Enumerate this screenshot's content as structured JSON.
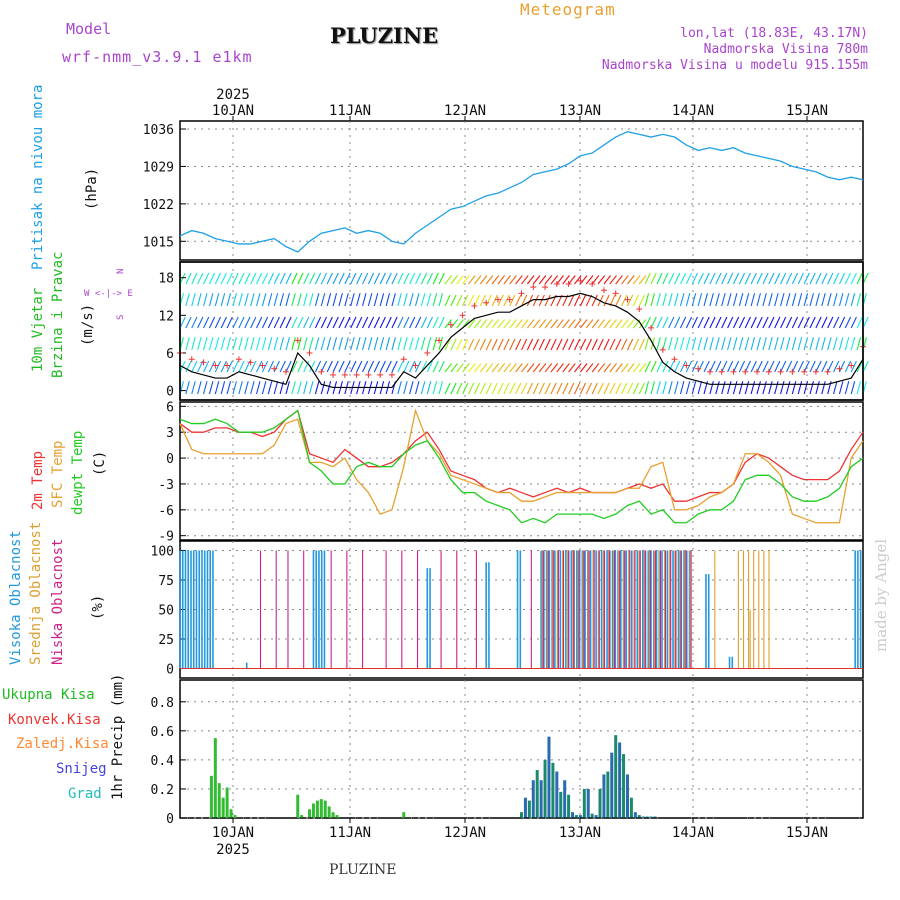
{
  "header": {
    "model_label": "Model",
    "model_name": "wrf-nmm_v3.9.1 e1km",
    "title": "PLUZINE",
    "meteogram": "Meteogram",
    "coords": "lon,lat (18.83E, 43.17N)",
    "elevation": "Nadmorska Visina 780m",
    "model_elevation": "Nadmorska Visina u modelu 915.155m"
  },
  "footer": {
    "station": "PLUZINE",
    "credit": "made by Angel"
  },
  "colors": {
    "pressure": "#1ea0e6",
    "wind": "#22bb22",
    "t2m": "#ee3333",
    "sfc": "#e8a030",
    "dew": "#22cc22",
    "high_cloud": "#2299dd",
    "mid_cloud": "#dda030",
    "low_cloud": "#cc2288",
    "header_purple": "#aa44cc",
    "header_orange": "#e8a030"
  },
  "chart_data": [
    {
      "type": "line",
      "panel": "pressure",
      "label_lines": [
        "Pritisak na nivou mora",
        "(hPa)"
      ],
      "x_top_labels": [
        "10JAN",
        "11JAN",
        "12JAN",
        "13JAN",
        "14JAN",
        "15JAN"
      ],
      "x_top_year": "2025",
      "yticks": [
        1015,
        1022,
        1029,
        1036
      ],
      "ylim": [
        1011.5,
        1037.5
      ],
      "x_hours": [
        0,
        3,
        6,
        9,
        12,
        15,
        18,
        21,
        24,
        27,
        30,
        33,
        36,
        39,
        42,
        45,
        48,
        51,
        54,
        57,
        60,
        63,
        66,
        69,
        72,
        75,
        78,
        81,
        84,
        87,
        90,
        93,
        96,
        99,
        102,
        105,
        108,
        111,
        114,
        117,
        120,
        123,
        126,
        129,
        132,
        135,
        138,
        141,
        144,
        147,
        150,
        153,
        156,
        159,
        162,
        165,
        168,
        171,
        174
      ],
      "values": [
        1016,
        1017,
        1016.5,
        1015.5,
        1015,
        1014.5,
        1014.5,
        1015,
        1015.5,
        1014,
        1013,
        1015,
        1016.5,
        1017,
        1017.5,
        1016.5,
        1017,
        1016.5,
        1015,
        1014.5,
        1016.5,
        1018,
        1019.5,
        1021,
        1021.5,
        1022.5,
        1023.5,
        1024,
        1025,
        1026,
        1027.5,
        1028,
        1028.5,
        1029.5,
        1031,
        1031.5,
        1033,
        1034.5,
        1035.5,
        1035,
        1034.5,
        1035,
        1034.5,
        1033,
        1032,
        1032.5,
        1032,
        1032.5,
        1031.5,
        1031,
        1030.5,
        1030,
        1029,
        1028.5,
        1028,
        1027,
        1026.5,
        1027,
        1026.5
      ]
    },
    {
      "type": "line",
      "panel": "wind",
      "label_lines": [
        "10m Vjetar",
        "Brzina i Pravac",
        "(m/s)"
      ],
      "compass": "W <-|-> E",
      "compass_n": "N",
      "compass_s": "S",
      "yticks": [
        0,
        6,
        12,
        18
      ],
      "ylim": [
        -1.5,
        20.5
      ],
      "x_hours": [
        0,
        3,
        6,
        9,
        12,
        15,
        18,
        21,
        24,
        27,
        30,
        33,
        36,
        39,
        42,
        45,
        48,
        51,
        54,
        57,
        60,
        63,
        66,
        69,
        72,
        75,
        78,
        81,
        84,
        87,
        90,
        93,
        96,
        99,
        102,
        105,
        108,
        111,
        114,
        117,
        120,
        123,
        126,
        129,
        132,
        135,
        138,
        141,
        144,
        147,
        150,
        153,
        156,
        159,
        162,
        165,
        168,
        171,
        174
      ],
      "values": [
        4,
        3,
        2.5,
        2,
        2,
        3,
        2.5,
        2,
        1.5,
        1,
        6,
        4,
        1,
        0.5,
        0.5,
        0.5,
        0.5,
        0.5,
        0.5,
        3,
        2,
        4,
        6,
        8.5,
        10,
        11.5,
        12,
        12.5,
        12.5,
        13.5,
        14.5,
        14.5,
        15,
        15,
        15.5,
        15,
        14,
        13.5,
        12.5,
        11,
        8,
        4.5,
        3,
        2,
        1.5,
        1,
        1,
        1,
        1,
        1,
        1,
        1,
        1,
        1,
        1,
        1,
        1.5,
        2,
        5
      ]
    },
    {
      "type": "line",
      "panel": "temperature",
      "label_lines": [
        "2m Temp",
        "SFC Temp",
        "dewpt Temp",
        "(C)"
      ],
      "yticks": [
        -9,
        -6,
        -3,
        0,
        3,
        6
      ],
      "ylim": [
        -9.5,
        6.5
      ],
      "x_hours": [
        0,
        3,
        6,
        9,
        12,
        15,
        18,
        21,
        24,
        27,
        30,
        33,
        36,
        39,
        42,
        45,
        48,
        51,
        54,
        57,
        60,
        63,
        66,
        69,
        72,
        75,
        78,
        81,
        84,
        87,
        90,
        93,
        96,
        99,
        102,
        105,
        108,
        111,
        114,
        117,
        120,
        123,
        126,
        129,
        132,
        135,
        138,
        141,
        144,
        147,
        150,
        153,
        156,
        159,
        162,
        165,
        168,
        171,
        174
      ],
      "series": [
        {
          "name": "2m Temp",
          "values": [
            4,
            3,
            3,
            3.5,
            3.5,
            3,
            3,
            2.5,
            3,
            4.5,
            5.5,
            0.5,
            0,
            -0.5,
            1,
            0,
            -1,
            -1,
            -0.5,
            0.5,
            2,
            3,
            1,
            -1.5,
            -2,
            -2.5,
            -3.5,
            -4,
            -3.5,
            -4,
            -4.5,
            -4,
            -3.5,
            -4,
            -3.5,
            -4,
            -4,
            -4,
            -3.5,
            -3,
            -3.5,
            -3,
            -5,
            -5,
            -4.5,
            -4,
            -4,
            -3,
            -0.5,
            0.5,
            0,
            -1,
            -2,
            -2.5,
            -2.5,
            -2.5,
            -1.5,
            1,
            3
          ]
        },
        {
          "name": "SFC Temp",
          "values": [
            4,
            1,
            0.5,
            0.5,
            0.5,
            0.5,
            0.5,
            0.5,
            1.5,
            4,
            4.5,
            -0.5,
            -0.5,
            -1,
            0,
            -2.5,
            -4,
            -6.5,
            -6,
            -1,
            5.5,
            2,
            0.5,
            -2,
            -2.5,
            -3,
            -3.5,
            -4,
            -4,
            -5,
            -5,
            -4.5,
            -4,
            -4,
            -4,
            -4,
            -4,
            -4,
            -3.5,
            -3.5,
            -1,
            -0.5,
            -6,
            -6,
            -5.5,
            -4.5,
            -4,
            -3,
            0.5,
            0.5,
            -0.5,
            -2,
            -6.5,
            -7,
            -7.5,
            -7.5,
            -7.5,
            0,
            2
          ]
        },
        {
          "name": "dewpt Temp",
          "values": [
            4.5,
            4,
            4,
            4.5,
            4,
            3,
            3,
            3,
            3.5,
            4.5,
            5.5,
            -0.5,
            -1.5,
            -3,
            -3,
            -1,
            -0.5,
            -1,
            -1,
            0.5,
            1.5,
            2,
            0,
            -2.5,
            -4,
            -4,
            -5,
            -5.5,
            -6,
            -7.5,
            -7,
            -7.5,
            -6.5,
            -6.5,
            -6.5,
            -6.5,
            -7,
            -6.5,
            -5.5,
            -5,
            -6.5,
            -6,
            -7.5,
            -7.5,
            -6.5,
            -6,
            -6,
            -5,
            -2.5,
            -2,
            -2,
            -3,
            -4.5,
            -5,
            -5,
            -4.5,
            -3.5,
            -1,
            0
          ]
        }
      ]
    },
    {
      "type": "bar",
      "panel": "clouds",
      "label_lines": [
        "Visoka Oblacnost",
        "Srednja Oblacnost",
        "Niska Oblacnost",
        "(%)"
      ],
      "yticks": [
        0,
        25,
        50,
        75,
        100
      ],
      "ylim": [
        -8,
        108
      ],
      "series": [
        {
          "name": "Visoka Oblacnost",
          "segments": [
            [
              0,
              9,
              100
            ],
            [
              17,
              17.5,
              5
            ],
            [
              34,
              37,
              100
            ],
            [
              63,
              64,
              85
            ],
            [
              78,
              79,
              90
            ],
            [
              86,
              87,
              100
            ],
            [
              92,
              130,
              100
            ],
            [
              134,
              135,
              80
            ],
            [
              140,
              141,
              10
            ],
            [
              172,
              174,
              100
            ]
          ]
        },
        {
          "name": "Srednja Oblacnost",
          "segments": [
            [
              92,
              130,
              100
            ],
            [
              136,
              137,
              100
            ],
            [
              142,
              150,
              100
            ],
            [
              145,
              146,
              50
            ]
          ]
        },
        {
          "name": "Niska Oblacnost",
          "segments": [
            [
              20,
              21,
              100
            ],
            [
              24,
              25,
              100
            ],
            [
              27,
              28,
              100
            ],
            [
              31,
              32,
              100
            ],
            [
              38,
              39,
              100
            ],
            [
              42,
              43,
              100
            ],
            [
              46,
              47,
              100
            ],
            [
              52,
              53,
              100
            ],
            [
              56,
              57,
              100
            ],
            [
              60,
              61,
              100
            ],
            [
              66,
              67,
              100
            ],
            [
              70,
              71,
              100
            ],
            [
              75,
              76,
              100
            ],
            [
              89,
              90,
              100
            ],
            [
              92,
              130,
              100
            ]
          ]
        }
      ]
    },
    {
      "type": "bar",
      "panel": "precipitation",
      "label_lines": [
        "Ukupna Kisa",
        "Konvek.Kisa",
        "Zaledj.Kisa",
        "Snijeg",
        "Grad",
        "1hr Precip (mm)"
      ],
      "x_bottom_labels": [
        "10JAN",
        "11JAN",
        "12JAN",
        "13JAN",
        "14JAN",
        "15JAN"
      ],
      "x_bottom_year": "2025",
      "yticks": [
        0,
        0.2,
        0.4,
        0.6,
        0.8
      ],
      "ytick_labels": [
        "0",
        "0.2",
        "0.4",
        "0.6",
        "0.8"
      ],
      "ylim": [
        0,
        0.95
      ],
      "x_hours": [
        8,
        9,
        10,
        11,
        12,
        13,
        14,
        30,
        31,
        33,
        34,
        35,
        36,
        37,
        38,
        39,
        40,
        57,
        87,
        88,
        89,
        90,
        91,
        92,
        93,
        94,
        95,
        96,
        97,
        98,
        99,
        100,
        101,
        102,
        103,
        104,
        105,
        106,
        107,
        108,
        109,
        110,
        111,
        112,
        113,
        114,
        115,
        116,
        117,
        118,
        119,
        120,
        121
      ],
      "values": [
        0.29,
        0.55,
        0.24,
        0.14,
        0.21,
        0.06,
        0.02,
        0.16,
        0.02,
        0.06,
        0.1,
        0.12,
        0.13,
        0.12,
        0.08,
        0.04,
        0.02,
        0.04,
        0.04,
        0.14,
        0.12,
        0.26,
        0.33,
        0.26,
        0.4,
        0.56,
        0.38,
        0.32,
        0.18,
        0.26,
        0.16,
        0.04,
        0.02,
        0.02,
        0.2,
        0.2,
        0.03,
        0.02,
        0.2,
        0.3,
        0.32,
        0.45,
        0.57,
        0.52,
        0.44,
        0.3,
        0.14,
        0.04,
        0.02,
        0.01,
        0.01,
        0.01,
        0.01
      ]
    }
  ]
}
